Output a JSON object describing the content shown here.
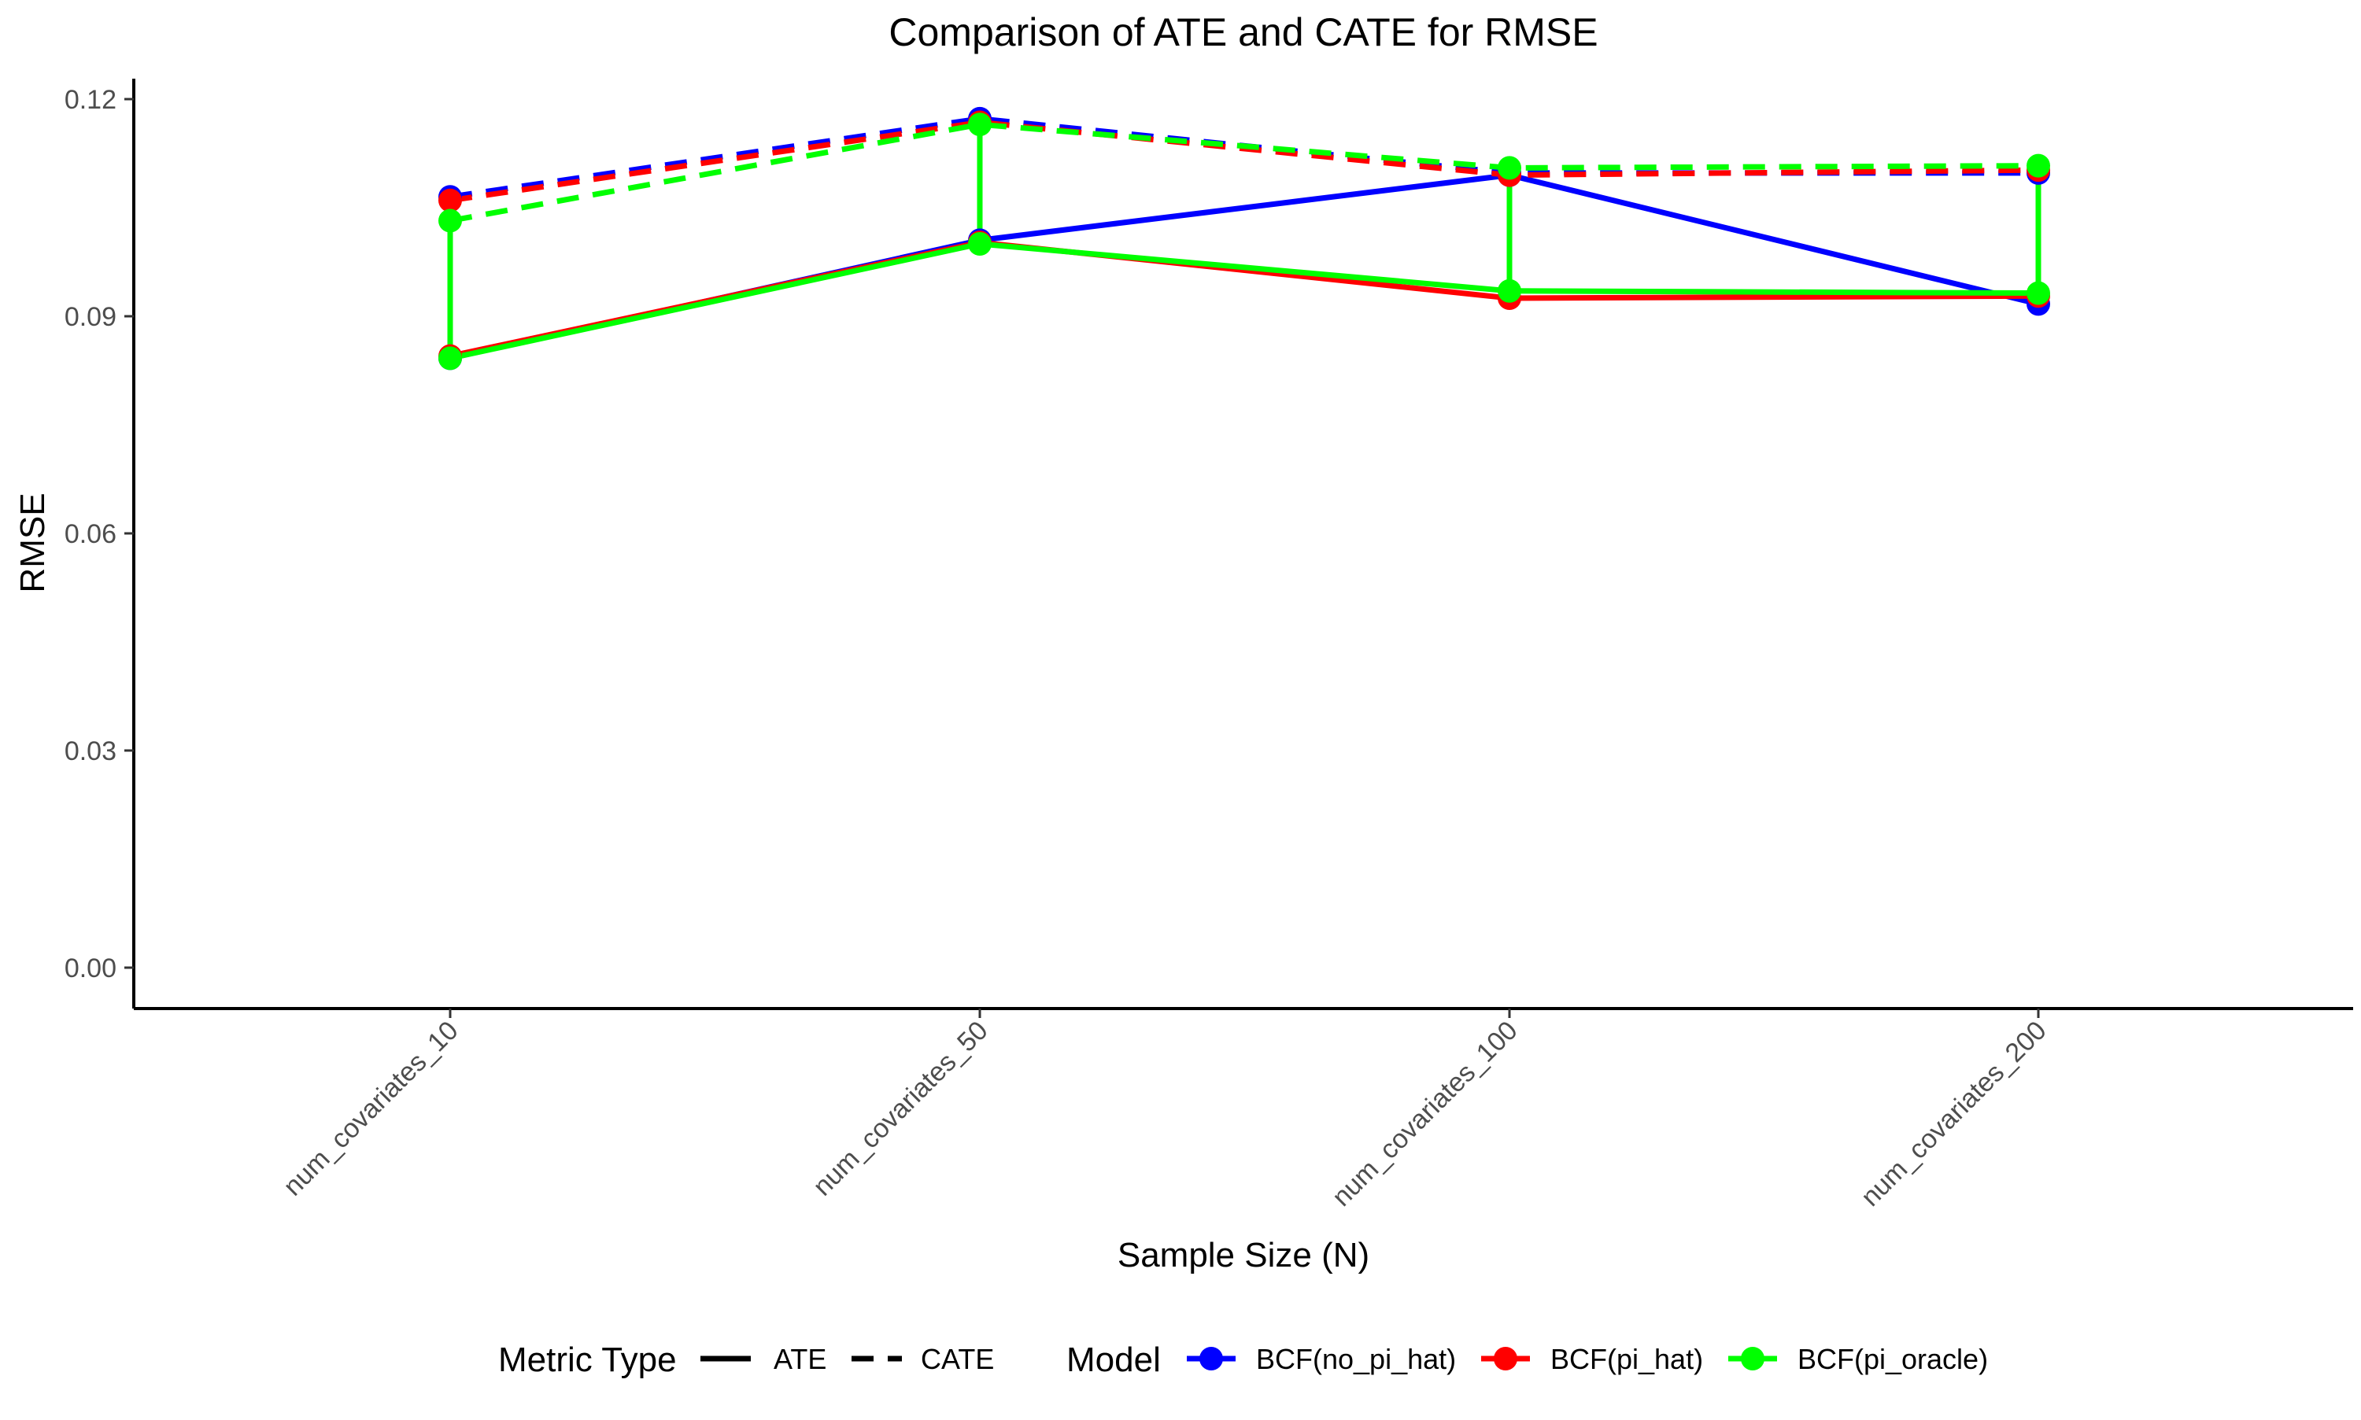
{
  "chart_data": {
    "type": "line",
    "title": "Comparison of ATE and CATE for RMSE",
    "xlabel": "Sample Size (N)",
    "ylabel": "RMSE",
    "categories": [
      "num_covariates_10",
      "num_covariates_50",
      "num_covariates_100",
      "num_covariates_200"
    ],
    "ylim": [
      0,
      0.12
    ],
    "yticks": [
      0.0,
      0.03,
      0.06,
      0.09,
      0.12
    ],
    "ytick_labels": [
      "0.00",
      "0.03",
      "0.06",
      "0.09",
      "0.12"
    ],
    "grid": false,
    "legend_position": "bottom",
    "legend": {
      "metric_title": "Metric Type",
      "metric_items": [
        "ATE",
        "CATE"
      ],
      "model_title": "Model",
      "model_items": [
        "BCF(no_pi_hat)",
        "BCF(pi_hat)",
        "BCF(pi_oracle)"
      ]
    },
    "series": [
      {
        "model": "BCF(no_pi_hat)",
        "metric": "ATE",
        "color": "#0000ff",
        "values": [
          0.0842,
          0.1005,
          0.1095,
          0.0917
        ]
      },
      {
        "model": "BCF(pi_hat)",
        "metric": "ATE",
        "color": "#ff0000",
        "values": [
          0.0845,
          0.1002,
          0.0925,
          0.0928
        ]
      },
      {
        "model": "BCF(pi_oracle)",
        "metric": "ATE",
        "color": "#00ff00",
        "values": [
          0.0842,
          0.1,
          0.0935,
          0.0932
        ]
      },
      {
        "model": "BCF(no_pi_hat)",
        "metric": "CATE",
        "color": "#0000ff",
        "values": [
          0.1065,
          0.1173,
          0.1098,
          0.1098
        ]
      },
      {
        "model": "BCF(pi_hat)",
        "metric": "CATE",
        "color": "#ff0000",
        "values": [
          0.106,
          0.1168,
          0.1095,
          0.1102
        ]
      },
      {
        "model": "BCF(pi_oracle)",
        "metric": "CATE",
        "color": "#00ff00",
        "values": [
          0.1032,
          0.1165,
          0.1105,
          0.1108
        ]
      }
    ]
  }
}
